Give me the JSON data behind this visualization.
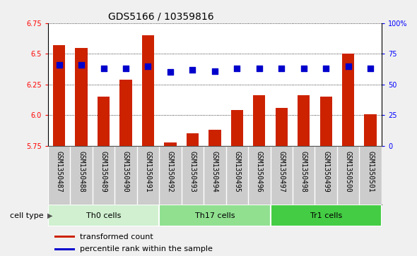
{
  "title": "GDS5166 / 10359816",
  "samples": [
    "GSM1350487",
    "GSM1350488",
    "GSM1350489",
    "GSM1350490",
    "GSM1350491",
    "GSM1350492",
    "GSM1350493",
    "GSM1350494",
    "GSM1350495",
    "GSM1350496",
    "GSM1350497",
    "GSM1350498",
    "GSM1350499",
    "GSM1350500",
    "GSM1350501"
  ],
  "transformed_counts": [
    6.57,
    6.55,
    6.15,
    6.29,
    6.65,
    5.78,
    5.85,
    5.88,
    6.04,
    6.16,
    6.06,
    6.16,
    6.15,
    6.5,
    6.01
  ],
  "percentile_ranks": [
    66,
    66,
    63,
    63,
    65,
    60,
    62,
    61,
    63,
    63,
    63,
    63,
    63,
    65,
    63
  ],
  "cell_types": [
    {
      "label": "Th0 cells",
      "start": 0,
      "end": 5,
      "color": "#d0f0d0"
    },
    {
      "label": "Th17 cells",
      "start": 5,
      "end": 10,
      "color": "#90e090"
    },
    {
      "label": "Tr1 cells",
      "start": 10,
      "end": 15,
      "color": "#44cc44"
    }
  ],
  "ymin": 5.75,
  "ymax": 6.75,
  "yticks_left": [
    5.75,
    6.0,
    6.25,
    6.5,
    6.75
  ],
  "yticks_right": [
    0,
    25,
    50,
    75,
    100
  ],
  "bar_color": "#cc2200",
  "dot_color": "#0000cc",
  "bar_width": 0.55,
  "dot_size": 35,
  "sample_bg": "#cccccc",
  "sample_border": "#888888",
  "plot_bg": "#ffffff",
  "fig_bg": "#f0f0f0",
  "grid_color": "#000000",
  "legend_bar_label": "transformed count",
  "legend_dot_label": "percentile rank within the sample",
  "cell_type_label": "cell type",
  "title_fontsize": 10,
  "tick_fontsize": 7,
  "label_fontsize": 8,
  "cell_type_fontsize": 8
}
